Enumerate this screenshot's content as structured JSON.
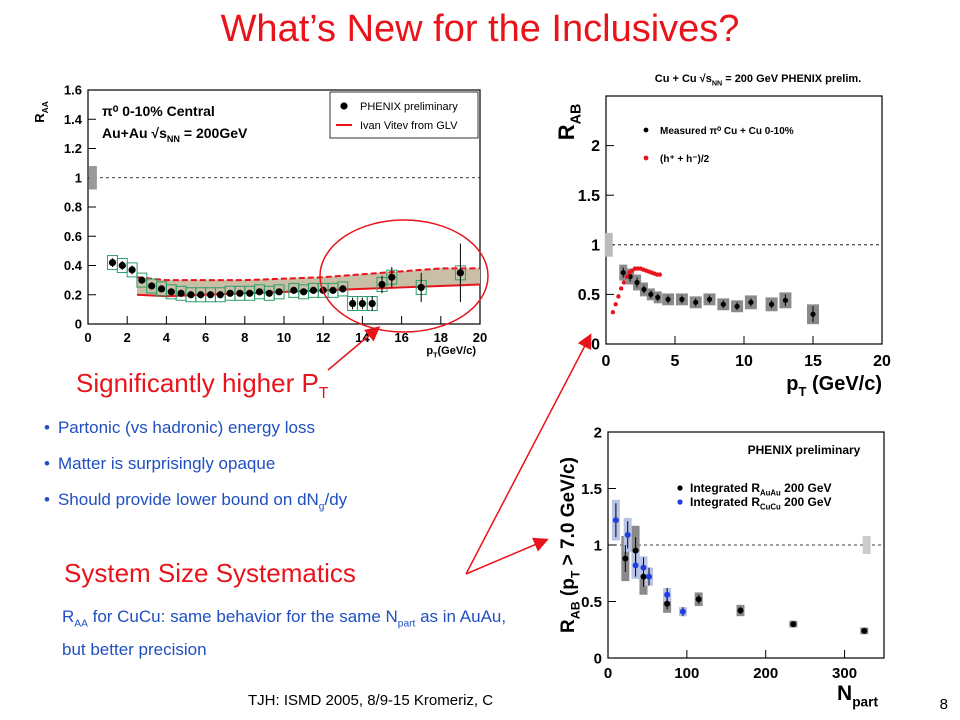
{
  "slide": {
    "title": "What’s New for the Inclusives?",
    "heading_pt": "Significantly higher P",
    "heading_pt_sub": "T",
    "bullets": [
      {
        "pre": "Partonic (vs hadronic) energy loss",
        "sub": "",
        "post": ""
      },
      {
        "pre": "Matter is surprisingly opaque",
        "sub": "",
        "post": ""
      },
      {
        "pre": "Should provide lower bound on dN",
        "sub": "g",
        "post": "/dy"
      }
    ],
    "heading_sys": "System Size Systematics",
    "sys_desc": {
      "r": "R",
      "r_sub": "AA",
      "mid": " for CuCu: same behavior for the same N",
      "n_sub": "part",
      "end": " as in AuAu, but better precision"
    },
    "footer": "TJH: ISMD 2005, 8/9-15 Kromeriz, C",
    "page_number": "8"
  },
  "colors": {
    "accent": "#e8131b",
    "text_blue": "#1f4fc1",
    "band_fill": "#c8bfa6",
    "box_green": "#2e9e6b"
  },
  "chart_data": [
    {
      "type": "scatter",
      "id": "auau",
      "ylabel": "R",
      "ylabel_sub": "AA",
      "xlabel": "p",
      "xlabel_sub": "T",
      "xlabel_unit": "(GeV/c)",
      "xlim": [
        0,
        20
      ],
      "ylim": [
        0,
        1.6
      ],
      "xticks": [
        0,
        2,
        4,
        6,
        8,
        10,
        12,
        14,
        16,
        18,
        20
      ],
      "yticks": [
        0,
        0.2,
        0.4,
        0.6,
        0.8,
        1,
        1.2,
        1.4,
        1.6
      ],
      "ref_line": 1,
      "norm_box": [
        0.92,
        1.08
      ],
      "annotation": {
        "line1": "π⁰ 0-10% Central",
        "line2": "Au+Au √s",
        "line2_sub": "NN",
        "line2_end": " = 200GeV"
      },
      "legend": {
        "position": "top-right",
        "items": [
          {
            "label": "PHENIX preliminary",
            "marker": "dot"
          },
          {
            "label": "Ivan Vitev from GLV",
            "marker": "red-line"
          }
        ]
      },
      "series": [
        {
          "name": "PHENIX preliminary",
          "x": [
            1.25,
            1.75,
            2.25,
            2.75,
            3.25,
            3.75,
            4.25,
            4.75,
            5.25,
            5.75,
            6.25,
            6.75,
            7.25,
            7.75,
            8.25,
            8.75,
            9.25,
            9.75,
            10.5,
            11.0,
            11.5,
            12.0,
            12.5,
            13.0,
            13.5,
            14.0,
            14.5,
            15.0,
            15.5,
            17.0,
            19.0
          ],
          "y": [
            0.42,
            0.4,
            0.37,
            0.3,
            0.26,
            0.24,
            0.22,
            0.21,
            0.2,
            0.2,
            0.2,
            0.2,
            0.21,
            0.21,
            0.21,
            0.22,
            0.21,
            0.22,
            0.23,
            0.22,
            0.23,
            0.23,
            0.23,
            0.24,
            0.14,
            0.14,
            0.14,
            0.27,
            0.32,
            0.25,
            0.35
          ],
          "err": [
            0.03,
            0.03,
            0.03,
            0.02,
            0.02,
            0.02,
            0.02,
            0.02,
            0.02,
            0.02,
            0.02,
            0.02,
            0.02,
            0.02,
            0.02,
            0.02,
            0.02,
            0.02,
            0.02,
            0.02,
            0.02,
            0.02,
            0.02,
            0.02,
            0.04,
            0.04,
            0.05,
            0.06,
            0.07,
            0.1,
            0.2
          ]
        }
      ],
      "theory_band": {
        "name": "Ivan Vitev from GLV",
        "x": [
          2.5,
          4,
          6,
          8,
          10,
          12,
          14,
          16,
          18,
          20
        ],
        "upper": [
          0.32,
          0.3,
          0.3,
          0.3,
          0.31,
          0.32,
          0.34,
          0.36,
          0.38,
          0.38
        ],
        "lower": [
          0.2,
          0.19,
          0.2,
          0.21,
          0.22,
          0.23,
          0.24,
          0.25,
          0.26,
          0.27
        ]
      }
    },
    {
      "type": "scatter",
      "id": "cucu_pt",
      "title": "Cu + Cu √s",
      "title_sub": "NN",
      "title_end": " = 200 GeV PHENIX prelim.",
      "ylabel": "R",
      "ylabel_sub": "AB",
      "xlabel": "p",
      "xlabel_sub": "T",
      "xlabel_unit": " (GeV/c)",
      "xlim": [
        0,
        20
      ],
      "ylim": [
        0,
        2.5
      ],
      "xticks": [
        0,
        5,
        10,
        15,
        20
      ],
      "yticks": [
        0,
        0.5,
        1,
        1.5,
        2
      ],
      "ref_line": 1,
      "norm_box": [
        0.88,
        1.12
      ],
      "legend": {
        "position": "top-left",
        "items": [
          {
            "label": "Measured π⁰ Cu + Cu 0-10%",
            "color": "#000000"
          },
          {
            "label": "(h⁺ + h⁻)/2",
            "color": "#e8131b"
          }
        ]
      },
      "series": [
        {
          "name": "Measured π⁰ Cu + Cu 0-10%",
          "x": [
            1.25,
            1.75,
            2.25,
            2.75,
            3.25,
            3.75,
            4.5,
            5.5,
            6.5,
            7.5,
            8.5,
            9.5,
            10.5,
            12.0,
            13.0,
            15.0
          ],
          "y": [
            0.72,
            0.68,
            0.62,
            0.55,
            0.5,
            0.47,
            0.45,
            0.45,
            0.42,
            0.45,
            0.4,
            0.38,
            0.42,
            0.4,
            0.44,
            0.3
          ],
          "err": [
            0.05,
            0.05,
            0.05,
            0.04,
            0.04,
            0.04,
            0.04,
            0.04,
            0.04,
            0.04,
            0.04,
            0.04,
            0.04,
            0.04,
            0.06,
            0.08
          ],
          "sys_box": [
            0.08,
            0.08,
            0.08,
            0.07,
            0.06,
            0.06,
            0.06,
            0.06,
            0.06,
            0.06,
            0.06,
            0.06,
            0.07,
            0.07,
            0.08,
            0.1
          ]
        },
        {
          "name": "(h⁺ + h⁻)/2",
          "x": [
            0.5,
            0.7,
            0.9,
            1.1,
            1.3,
            1.5,
            1.7,
            1.9,
            2.1,
            2.3,
            2.5,
            2.7,
            2.9,
            3.1,
            3.3,
            3.5,
            3.7,
            3.9
          ],
          "y": [
            0.32,
            0.4,
            0.48,
            0.56,
            0.62,
            0.68,
            0.72,
            0.74,
            0.76,
            0.76,
            0.76,
            0.75,
            0.74,
            0.73,
            0.72,
            0.71,
            0.7,
            0.7
          ]
        }
      ]
    },
    {
      "type": "scatter",
      "id": "npart",
      "title": "PHENIX preliminary",
      "ylabel": "R",
      "ylabel_sub": "AB",
      "ylabel_end": " (p",
      "ylabel_sub2": "T",
      "ylabel_end2": " > 7.0 GeV/c)",
      "xlabel": "N",
      "xlabel_sub": "part",
      "xlim": [
        0,
        350
      ],
      "ylim": [
        0,
        2
      ],
      "xticks": [
        0,
        100,
        200,
        300
      ],
      "yticks": [
        0,
        0.5,
        1,
        1.5,
        2
      ],
      "ref_line": 1,
      "norm_box": [
        0.92,
        1.08
      ],
      "legend": {
        "position": "top-right",
        "items": [
          {
            "label": "Integrated R",
            "sub": "AuAu",
            "end": " 200 GeV",
            "color": "#000000"
          },
          {
            "label": "Integrated R",
            "sub": "CuCu",
            "end": " 200 GeV",
            "color": "#1f3fe0"
          }
        ]
      },
      "series": [
        {
          "name": "AuAu",
          "x": [
            22,
            35,
            45,
            75,
            115,
            168,
            235,
            325
          ],
          "y": [
            0.88,
            0.95,
            0.72,
            0.48,
            0.52,
            0.42,
            0.3,
            0.24
          ],
          "err": [
            0.12,
            0.12,
            0.09,
            0.05,
            0.04,
            0.03,
            0.02,
            0.02
          ],
          "sys_box": [
            0.2,
            0.22,
            0.16,
            0.08,
            0.06,
            0.05,
            0.03,
            0.03
          ]
        },
        {
          "name": "CuCu",
          "x": [
            10,
            25,
            35,
            45,
            52,
            75,
            95
          ],
          "y": [
            1.22,
            1.09,
            0.82,
            0.8,
            0.72,
            0.56,
            0.41
          ],
          "err": [
            0.15,
            0.12,
            0.1,
            0.09,
            0.08,
            0.06,
            0.04
          ],
          "sys_box": [
            0.18,
            0.15,
            0.12,
            0.1,
            0.08,
            0.06,
            0.04
          ]
        }
      ]
    }
  ]
}
